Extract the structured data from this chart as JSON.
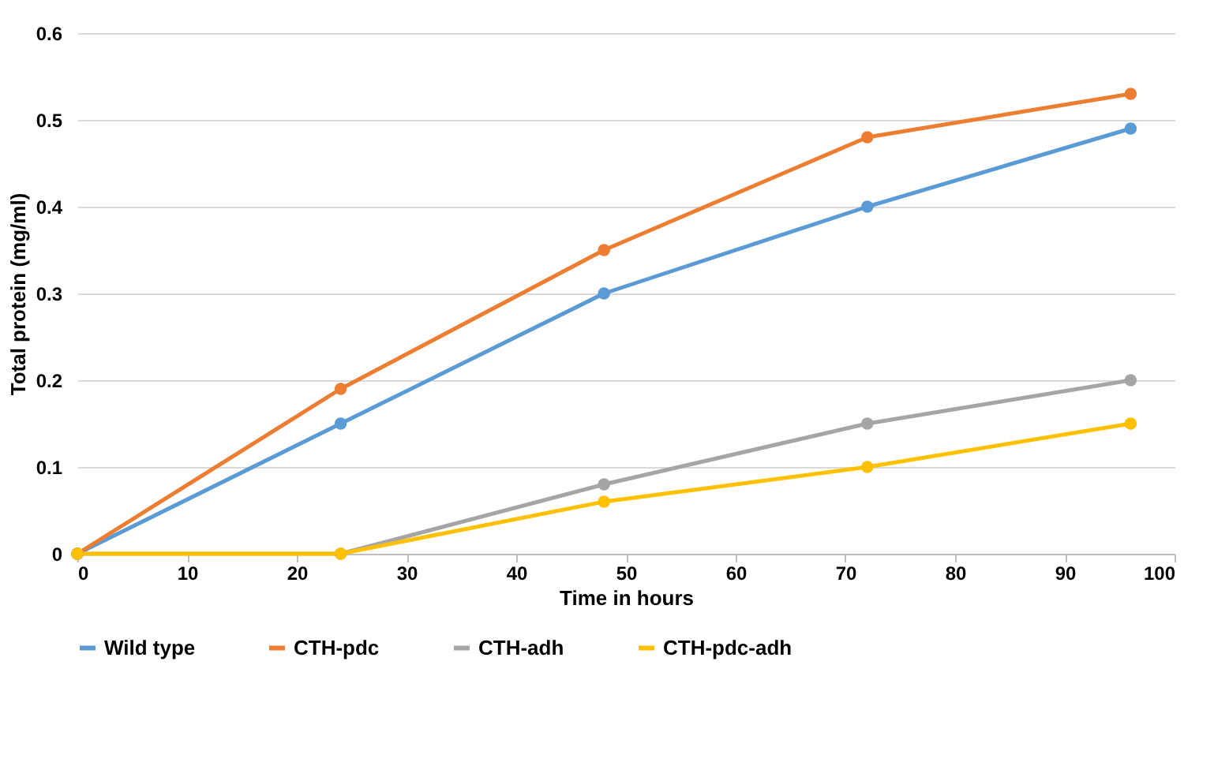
{
  "chart_data": {
    "type": "line",
    "xlabel": "Time in hours",
    "ylabel": "Total protein (mg/ml)",
    "x": [
      0,
      24,
      48,
      72,
      96
    ],
    "series": [
      {
        "name": "Wild type",
        "color": "#5b9bd5",
        "values": [
          0,
          0.15,
          0.3,
          0.4,
          0.49
        ]
      },
      {
        "name": "CTH-pdc",
        "color": "#ed7d31",
        "values": [
          0,
          0.19,
          0.35,
          0.48,
          0.53
        ]
      },
      {
        "name": "CTH-adh",
        "color": "#a5a5a5",
        "values": [
          0,
          0,
          0.08,
          0.15,
          0.2
        ]
      },
      {
        "name": "CTH-pdc-adh",
        "color": "#ffc000",
        "values": [
          0,
          0,
          0.06,
          0.1,
          0.15
        ]
      }
    ],
    "xlim": [
      0,
      100
    ],
    "xticks": [
      0,
      10,
      20,
      30,
      40,
      50,
      60,
      70,
      80,
      90,
      100
    ],
    "ylim": [
      0,
      0.6
    ],
    "yticks": [
      0,
      0.1,
      0.2,
      0.3,
      0.4,
      0.5,
      0.6
    ],
    "grid": "y",
    "legend": "bottom",
    "marker": "circle",
    "line_style": "solid"
  }
}
